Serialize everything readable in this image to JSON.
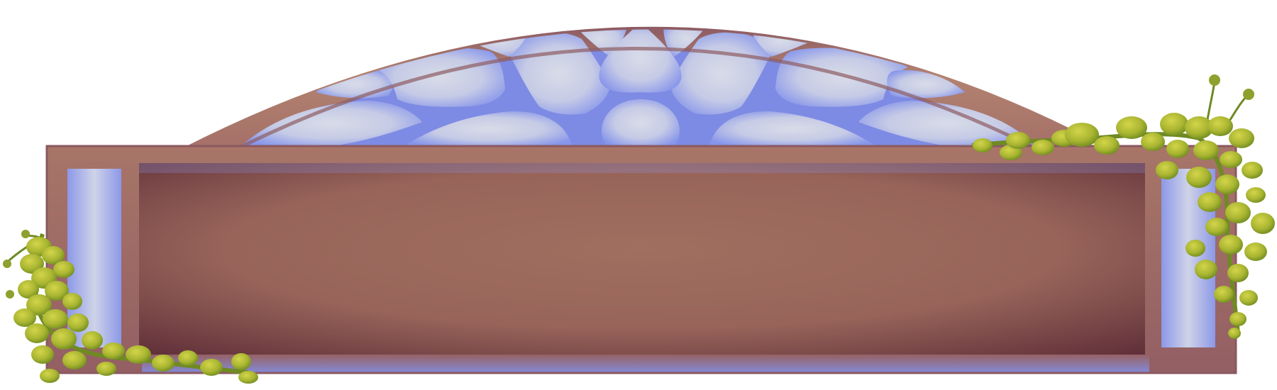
{
  "panel": {
    "title_text": "",
    "frame_color": "#a57068",
    "frame_dark": "#7a4a4e",
    "glass_light": "#d6dae8",
    "glass_edge": "#8e9ae8",
    "content_center": "#a0705e",
    "content_edge": "#6a3a3e",
    "vine_light": "#c2c83a",
    "vine_dark": "#6f8a22"
  },
  "icons": {
    "left_vine": "vine-icon",
    "right_vine": "vine-icon",
    "window": "stained-glass-window-icon"
  }
}
